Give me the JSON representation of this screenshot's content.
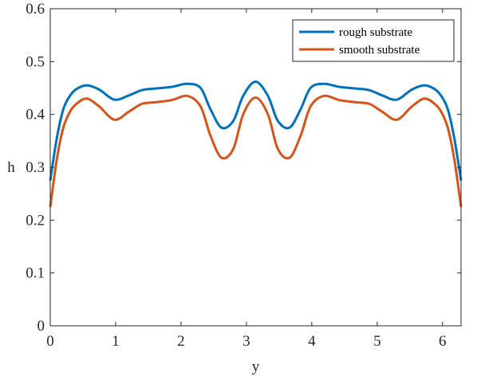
{
  "chart_data": {
    "type": "line",
    "xlabel": "y",
    "ylabel": "h",
    "xlim": [
      0,
      6.2832
    ],
    "ylim": [
      0,
      0.6
    ],
    "xticks": [
      "0",
      "1",
      "2",
      "3",
      "4",
      "5",
      "6"
    ],
    "yticks": [
      "0",
      "0.1",
      "0.2",
      "0.3",
      "0.4",
      "0.5",
      "0.6"
    ],
    "grid": false,
    "legend_position": "top-right",
    "series": [
      {
        "name": "rough substrate",
        "color": "#0072bd",
        "x": [
          0,
          0.1,
          0.2,
          0.3,
          0.4,
          0.56,
          0.75,
          0.98,
          1.2,
          1.4,
          1.6,
          1.85,
          2.1,
          2.3,
          2.45,
          2.62,
          2.8,
          2.95,
          3.14,
          3.33,
          3.48,
          3.66,
          3.83,
          3.98,
          4.18,
          4.43,
          4.68,
          4.88,
          5.08,
          5.3,
          5.53,
          5.72,
          5.88,
          5.98,
          6.08,
          6.18,
          6.2832
        ],
        "y": [
          0.275,
          0.355,
          0.41,
          0.435,
          0.448,
          0.455,
          0.447,
          0.428,
          0.436,
          0.446,
          0.449,
          0.452,
          0.458,
          0.45,
          0.41,
          0.375,
          0.388,
          0.435,
          0.462,
          0.435,
          0.388,
          0.375,
          0.41,
          0.45,
          0.458,
          0.452,
          0.449,
          0.446,
          0.436,
          0.428,
          0.447,
          0.455,
          0.448,
          0.435,
          0.41,
          0.355,
          0.275
        ]
      },
      {
        "name": "smooth substrate",
        "color": "#d95319",
        "x": [
          0,
          0.1,
          0.2,
          0.3,
          0.4,
          0.56,
          0.75,
          0.98,
          1.2,
          1.4,
          1.6,
          1.85,
          2.1,
          2.3,
          2.45,
          2.62,
          2.8,
          2.95,
          3.14,
          3.33,
          3.48,
          3.66,
          3.83,
          3.98,
          4.18,
          4.43,
          4.68,
          4.88,
          5.08,
          5.3,
          5.53,
          5.72,
          5.88,
          5.98,
          6.08,
          6.18,
          6.2832
        ],
        "y": [
          0.225,
          0.315,
          0.375,
          0.405,
          0.42,
          0.43,
          0.415,
          0.39,
          0.405,
          0.42,
          0.423,
          0.427,
          0.435,
          0.415,
          0.36,
          0.318,
          0.335,
          0.4,
          0.432,
          0.4,
          0.335,
          0.318,
          0.36,
          0.415,
          0.435,
          0.427,
          0.423,
          0.42,
          0.405,
          0.39,
          0.415,
          0.43,
          0.42,
          0.405,
          0.375,
          0.315,
          0.225
        ]
      }
    ]
  }
}
